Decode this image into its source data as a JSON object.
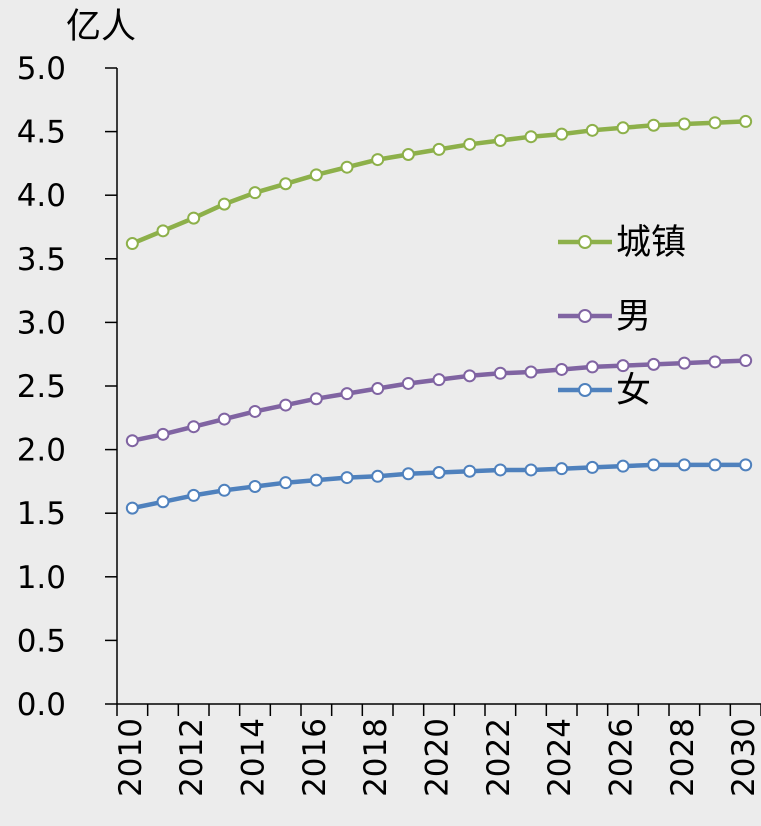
{
  "chart_data": {
    "type": "line",
    "unit_label": "亿人",
    "x": [
      2010,
      2011,
      2012,
      2013,
      2014,
      2015,
      2016,
      2017,
      2018,
      2019,
      2020,
      2021,
      2022,
      2023,
      2024,
      2025,
      2026,
      2027,
      2028,
      2029,
      2030
    ],
    "x_tick_labels": [
      "2010",
      "2012",
      "2014",
      "2016",
      "2018",
      "2020",
      "2022",
      "2024",
      "2026",
      "2028",
      "2030"
    ],
    "y_tick_labels": [
      "0.0",
      "0.5",
      "1.0",
      "1.5",
      "2.0",
      "2.5",
      "3.0",
      "3.5",
      "4.0",
      "4.5",
      "5.0"
    ],
    "ylim": [
      0,
      5
    ],
    "xlim": [
      2009.5,
      2030.5
    ],
    "grid": false,
    "legend_position": "right",
    "series": [
      {
        "name": "城镇",
        "color": "#8db04a",
        "values": [
          3.62,
          3.72,
          3.82,
          3.93,
          4.02,
          4.09,
          4.16,
          4.22,
          4.28,
          4.32,
          4.36,
          4.4,
          4.43,
          4.46,
          4.48,
          4.51,
          4.53,
          4.55,
          4.56,
          4.57,
          4.58
        ]
      },
      {
        "name": "男",
        "color": "#8064a2",
        "values": [
          2.07,
          2.12,
          2.18,
          2.24,
          2.3,
          2.35,
          2.4,
          2.44,
          2.48,
          2.52,
          2.55,
          2.58,
          2.6,
          2.61,
          2.63,
          2.65,
          2.66,
          2.67,
          2.68,
          2.69,
          2.7
        ]
      },
      {
        "name": "女",
        "color": "#4f81bd",
        "values": [
          1.54,
          1.59,
          1.64,
          1.68,
          1.71,
          1.74,
          1.76,
          1.78,
          1.79,
          1.81,
          1.82,
          1.83,
          1.84,
          1.84,
          1.85,
          1.86,
          1.87,
          1.88,
          1.88,
          1.88,
          1.88
        ]
      }
    ]
  }
}
